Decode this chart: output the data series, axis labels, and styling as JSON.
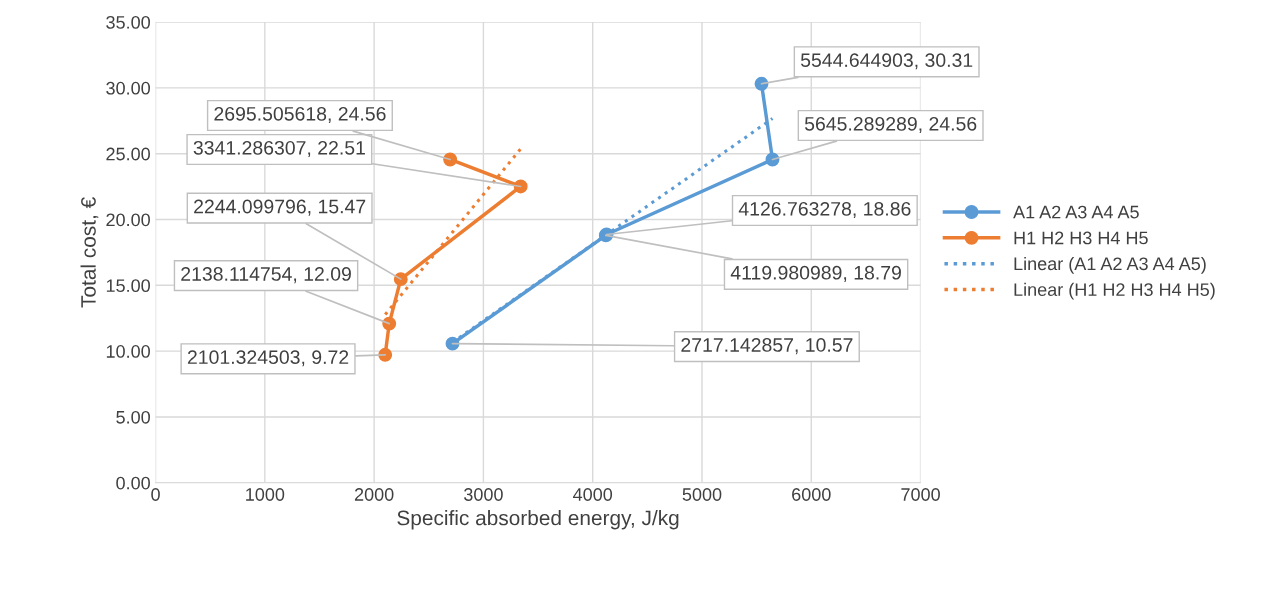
{
  "chart_data": {
    "type": "line",
    "xlabel": "Specific absorbed energy, J/kg",
    "ylabel": "Total cost, €",
    "xlim": [
      0,
      7000
    ],
    "xticks": [
      0,
      1000,
      2000,
      3000,
      4000,
      5000,
      6000,
      7000
    ],
    "ylim": [
      0,
      35
    ],
    "yticks": [
      {
        "value": 0,
        "label": "0.00"
      },
      {
        "value": 5,
        "label": "5.00"
      },
      {
        "value": 10,
        "label": "10.00"
      },
      {
        "value": 15,
        "label": "15.00"
      },
      {
        "value": 20,
        "label": "20.00"
      },
      {
        "value": 25,
        "label": "25.00"
      },
      {
        "value": 30,
        "label": "30.00"
      },
      {
        "value": 35,
        "label": "35.00"
      }
    ],
    "grid": true,
    "legend": "right",
    "marker": "circle",
    "line_style": "solid",
    "series": [
      {
        "name": "A1 A2 A3 A4 A5",
        "color": "#5b9bd5",
        "x": [
          2717.142857,
          4119.980989,
          4126.763278,
          5645.289289,
          5544.644903
        ],
        "values": [
          10.57,
          18.79,
          18.86,
          24.56,
          30.31
        ]
      },
      {
        "name": "H1 H2 H3 H4 H5",
        "color": "#ed7d31",
        "x": [
          2101.324503,
          2138.114754,
          2244.099796,
          3341.286307,
          2695.505618
        ],
        "values": [
          9.72,
          12.09,
          15.47,
          22.51,
          24.56
        ]
      },
      {
        "name": "Linear (A1 A2 A3 A4 A5)",
        "color": "#5b9bd5",
        "x": [
          2717.142857,
          5645.289289
        ],
        "values": [
          10.67,
          27.67
        ],
        "marker": "none",
        "line_style": "dotted"
      },
      {
        "name": "Linear (H1 H2 H3 H4 H5)",
        "color": "#ed7d31",
        "x": [
          2101.324503,
          3341.286307
        ],
        "values": [
          12.78,
          25.37
        ],
        "marker": "none",
        "line_style": "dotted"
      }
    ],
    "annotations": [
      {
        "text": "2717.142857, 10.57",
        "x": 2717.142857,
        "y": 10.57
      },
      {
        "text": "4119.980989, 18.79",
        "x": 4119.980989,
        "y": 18.79
      },
      {
        "text": "4126.763278, 18.86",
        "x": 4126.763278,
        "y": 18.86
      },
      {
        "text": "5645.289289, 24.56",
        "x": 5645.289289,
        "y": 24.56
      },
      {
        "text": "5544.644903, 30.31",
        "x": 5544.644903,
        "y": 30.31
      },
      {
        "text": "2101.324503, 9.72",
        "x": 2101.324503,
        "y": 9.72
      },
      {
        "text": "2138.114754, 12.09",
        "x": 2138.114754,
        "y": 12.09
      },
      {
        "text": "2244.099796, 15.47",
        "x": 2244.099796,
        "y": 15.47
      },
      {
        "text": "3341.286307, 22.51",
        "x": 3341.286307,
        "y": 22.51
      },
      {
        "text": "2695.505618, 24.56",
        "x": 2695.505618,
        "y": 24.56
      }
    ]
  }
}
